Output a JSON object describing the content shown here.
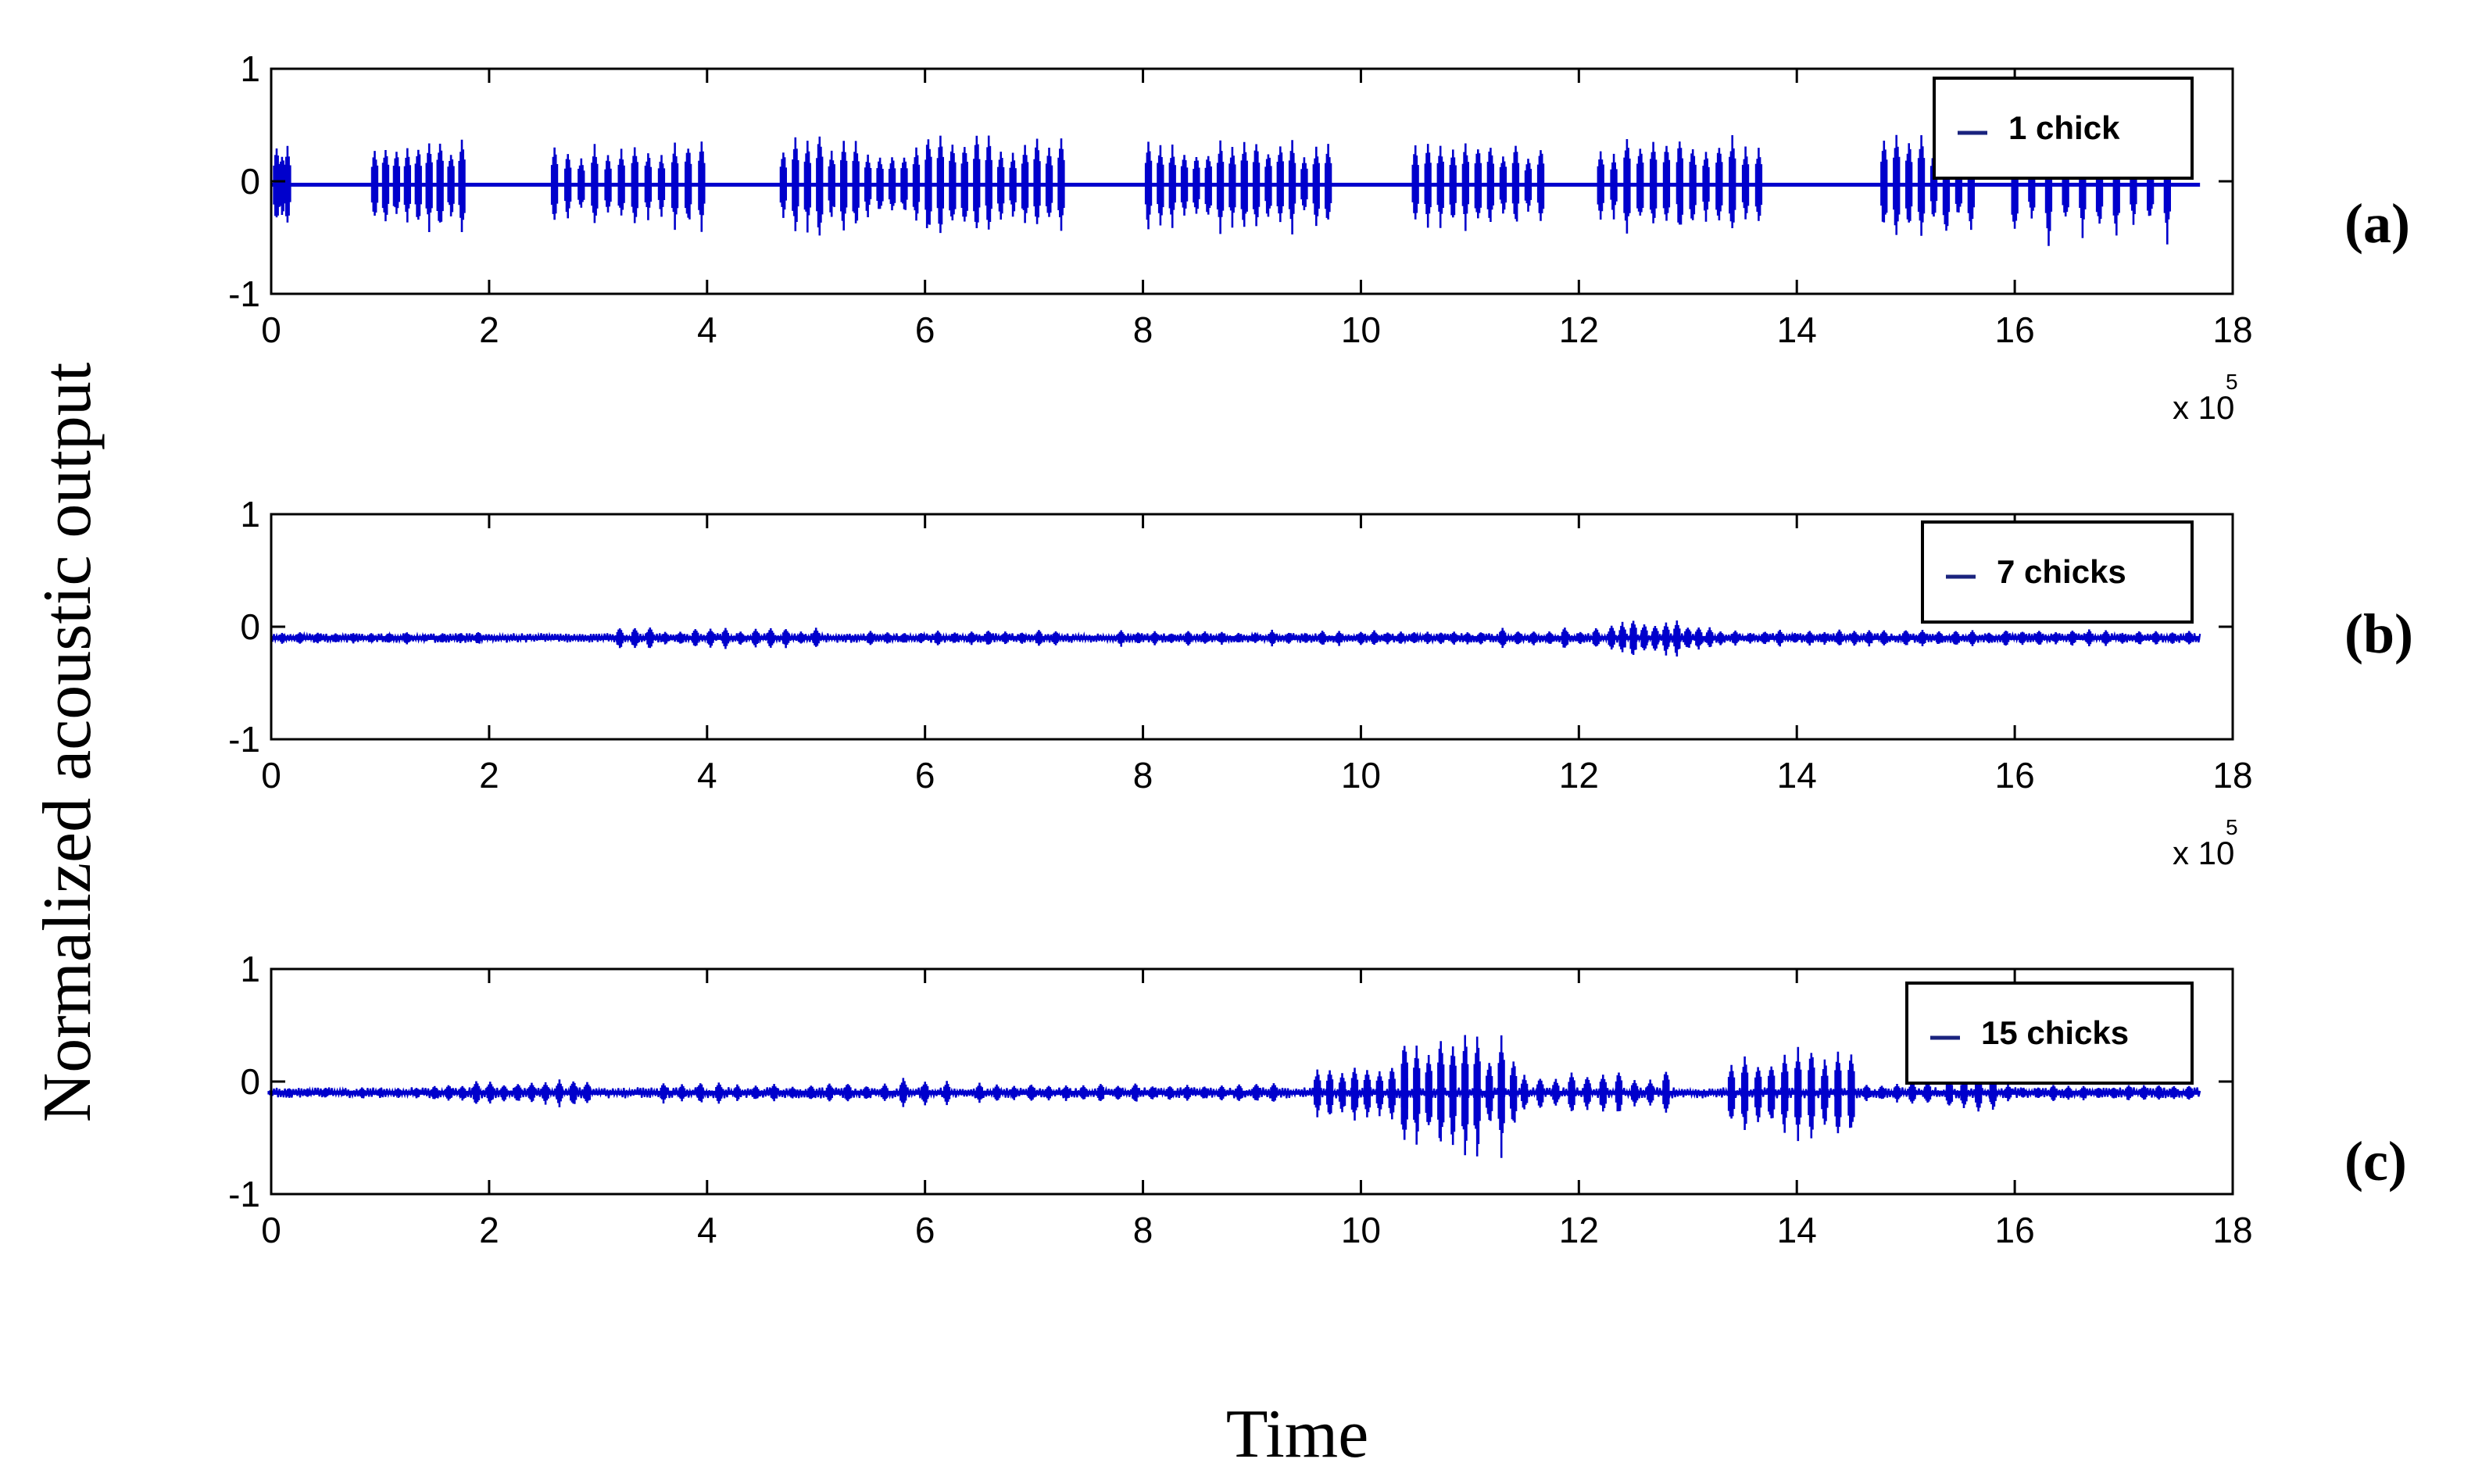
{
  "chart_data": [
    {
      "type": "line",
      "panel_label": "(a)",
      "legend": "1 chick",
      "series": [
        {
          "name": "1 chick",
          "color": "#0000cc"
        }
      ],
      "xlim": [
        0,
        18
      ],
      "ylim": [
        -1,
        1
      ],
      "x_ticks": [
        "0",
        "2",
        "4",
        "6",
        "8",
        "10",
        "12",
        "14",
        "16",
        "18"
      ],
      "y_ticks": [
        "1",
        "0",
        "-1"
      ],
      "x_exponent": "x 10",
      "x_exponent_power": "5",
      "baseline": -0.03,
      "signal_end_x": 17.7,
      "bursts": [
        {
          "start": 0.05,
          "end": 0.15,
          "amp": 0.4,
          "n": 3
        },
        {
          "start": 0.95,
          "end": 1.75,
          "amp": 0.45,
          "n": 9
        },
        {
          "start": 2.6,
          "end": 3.95,
          "amp": 0.42,
          "n": 12
        },
        {
          "start": 4.7,
          "end": 7.25,
          "amp": 0.48,
          "n": 24
        },
        {
          "start": 8.05,
          "end": 9.7,
          "amp": 0.42,
          "n": 16
        },
        {
          "start": 10.5,
          "end": 11.65,
          "amp": 0.45,
          "n": 11
        },
        {
          "start": 12.2,
          "end": 13.65,
          "amp": 0.45,
          "n": 13
        },
        {
          "start": 14.8,
          "end": 15.6,
          "amp": 0.5,
          "n": 8
        },
        {
          "start": 16.0,
          "end": 17.4,
          "amp": 0.55,
          "n": 10
        }
      ]
    },
    {
      "type": "line",
      "panel_label": "(b)",
      "legend": "7 chicks",
      "series": [
        {
          "name": "7 chicks",
          "color": "#0000cc"
        }
      ],
      "xlim": [
        0,
        18
      ],
      "ylim": [
        -1,
        1
      ],
      "x_ticks": [
        "0",
        "2",
        "4",
        "6",
        "8",
        "10",
        "12",
        "14",
        "16",
        "18"
      ],
      "y_ticks": [
        "1",
        "0",
        "-1"
      ],
      "x_exponent": "x 10",
      "x_exponent_power": "5",
      "baseline": -0.1,
      "signal_end_x": 17.7,
      "noise_amp": 0.03,
      "bursts": [
        {
          "start": 0.1,
          "end": 1.9,
          "amp": 0.06,
          "n": 12
        },
        {
          "start": 3.2,
          "end": 5.0,
          "amp": 0.1,
          "n": 14
        },
        {
          "start": 5.5,
          "end": 7.2,
          "amp": 0.08,
          "n": 12
        },
        {
          "start": 7.8,
          "end": 9.8,
          "amp": 0.08,
          "n": 14
        },
        {
          "start": 10.0,
          "end": 11.1,
          "amp": 0.08,
          "n": 10
        },
        {
          "start": 11.3,
          "end": 12.3,
          "amp": 0.1,
          "n": 8
        },
        {
          "start": 12.3,
          "end": 13.2,
          "amp": 0.18,
          "n": 10
        },
        {
          "start": 13.3,
          "end": 14.8,
          "amp": 0.08,
          "n": 12
        },
        {
          "start": 15.0,
          "end": 17.6,
          "amp": 0.08,
          "n": 18
        }
      ]
    },
    {
      "type": "line",
      "panel_label": "(c)",
      "legend": "15 chicks",
      "series": [
        {
          "name": "15 chicks",
          "color": "#0000cc"
        }
      ],
      "xlim": [
        0,
        18
      ],
      "ylim": [
        -1,
        1
      ],
      "x_ticks": [
        "0",
        "2",
        "4",
        "6",
        "8",
        "10",
        "12",
        "14",
        "16",
        "18"
      ],
      "y_ticks": [
        "1",
        "0",
        "-1"
      ],
      "baseline": -0.1,
      "signal_end_x": 17.7,
      "noise_amp": 0.035,
      "bursts": [
        {
          "start": 0.0,
          "end": 1.5,
          "amp": 0.05,
          "n": 10
        },
        {
          "start": 1.5,
          "end": 2.9,
          "amp": 0.12,
          "n": 12
        },
        {
          "start": 3.6,
          "end": 5.8,
          "amp": 0.1,
          "n": 14
        },
        {
          "start": 5.8,
          "end": 6.2,
          "amp": 0.15,
          "n": 3
        },
        {
          "start": 6.5,
          "end": 9.2,
          "amp": 0.1,
          "n": 18
        },
        {
          "start": 9.6,
          "end": 10.4,
          "amp": 0.25,
          "n": 8
        },
        {
          "start": 10.4,
          "end": 11.4,
          "amp": 0.55,
          "n": 10
        },
        {
          "start": 11.5,
          "end": 12.8,
          "amp": 0.22,
          "n": 10
        },
        {
          "start": 13.4,
          "end": 14.5,
          "amp": 0.45,
          "n": 10
        },
        {
          "start": 14.5,
          "end": 15.2,
          "amp": 0.12,
          "n": 6
        },
        {
          "start": 15.4,
          "end": 15.8,
          "amp": 0.2,
          "n": 4
        },
        {
          "start": 15.8,
          "end": 17.6,
          "amp": 0.08,
          "n": 14
        }
      ]
    }
  ],
  "ylabel": "Normalized acoustic output",
  "xlabel": "Time",
  "colors": {
    "signal": "#0000cc",
    "legend_line": "#1a237e",
    "axes": "#000000"
  }
}
